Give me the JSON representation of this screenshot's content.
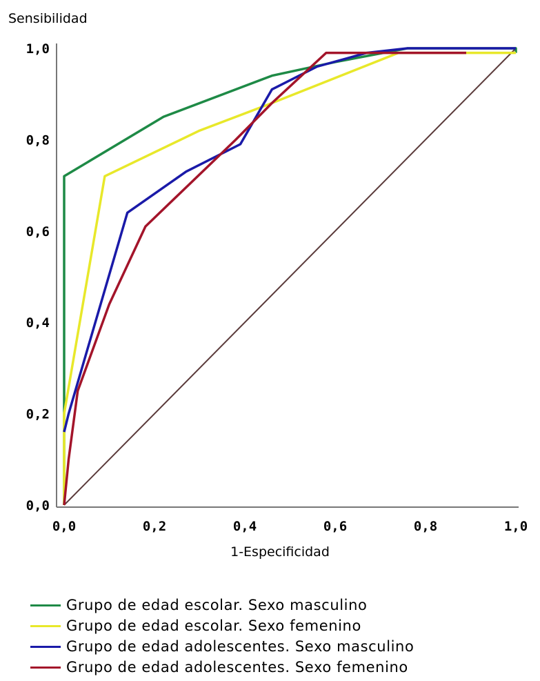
{
  "chart_data": {
    "type": "line",
    "title": "",
    "xlabel": "1-Especificidad",
    "ylabel": "Sensibilidad",
    "xlim": [
      0,
      1
    ],
    "ylim": [
      0,
      1
    ],
    "x_ticks": [
      "0,0",
      "0,2",
      "0,4",
      "0,6",
      "0,8",
      "1,0"
    ],
    "y_ticks": [
      "0,0",
      "0,2",
      "0,4",
      "0,6",
      "0,8",
      "1,0"
    ],
    "grid": false,
    "legend_position": "bottom",
    "reference_line": {
      "x": [
        0,
        1
      ],
      "y": [
        0,
        1
      ],
      "color": "#5a3a3a"
    },
    "series": [
      {
        "name": "Grupo de edad escolar. Sexo masculino",
        "color": "#1e8a46",
        "x": [
          0.0,
          0.0,
          0.0,
          0.22,
          0.46,
          0.6,
          0.76,
          1.0,
          1.0
        ],
        "y": [
          0.0,
          0.36,
          0.72,
          0.85,
          0.94,
          0.97,
          1.0,
          1.0,
          0.99
        ]
      },
      {
        "name": "Grupo de edad escolar. Sexo femenino",
        "color": "#e8e82a",
        "x": [
          0.0,
          0.0,
          0.09,
          0.3,
          0.46,
          0.74,
          1.0
        ],
        "y": [
          0.0,
          0.2,
          0.72,
          0.82,
          0.88,
          0.99,
          0.99
        ]
      },
      {
        "name": "Grupo de edad adolescentes. Sexo masculino",
        "color": "#1a1aa8",
        "x": [
          0.0,
          0.01,
          0.14,
          0.27,
          0.39,
          0.46,
          0.56,
          0.67,
          0.76,
          1.0
        ],
        "y": [
          0.16,
          0.2,
          0.64,
          0.73,
          0.79,
          0.91,
          0.96,
          0.99,
          1.0,
          1.0
        ]
      },
      {
        "name": "Grupo de edad adolescentes. Sexo femenino",
        "color": "#a3142a",
        "x": [
          0.0,
          0.01,
          0.03,
          0.1,
          0.18,
          0.38,
          0.46,
          0.58,
          0.7,
          0.89
        ],
        "y": [
          0.0,
          0.1,
          0.25,
          0.44,
          0.61,
          0.8,
          0.88,
          0.99,
          0.99,
          0.99
        ]
      }
    ]
  }
}
